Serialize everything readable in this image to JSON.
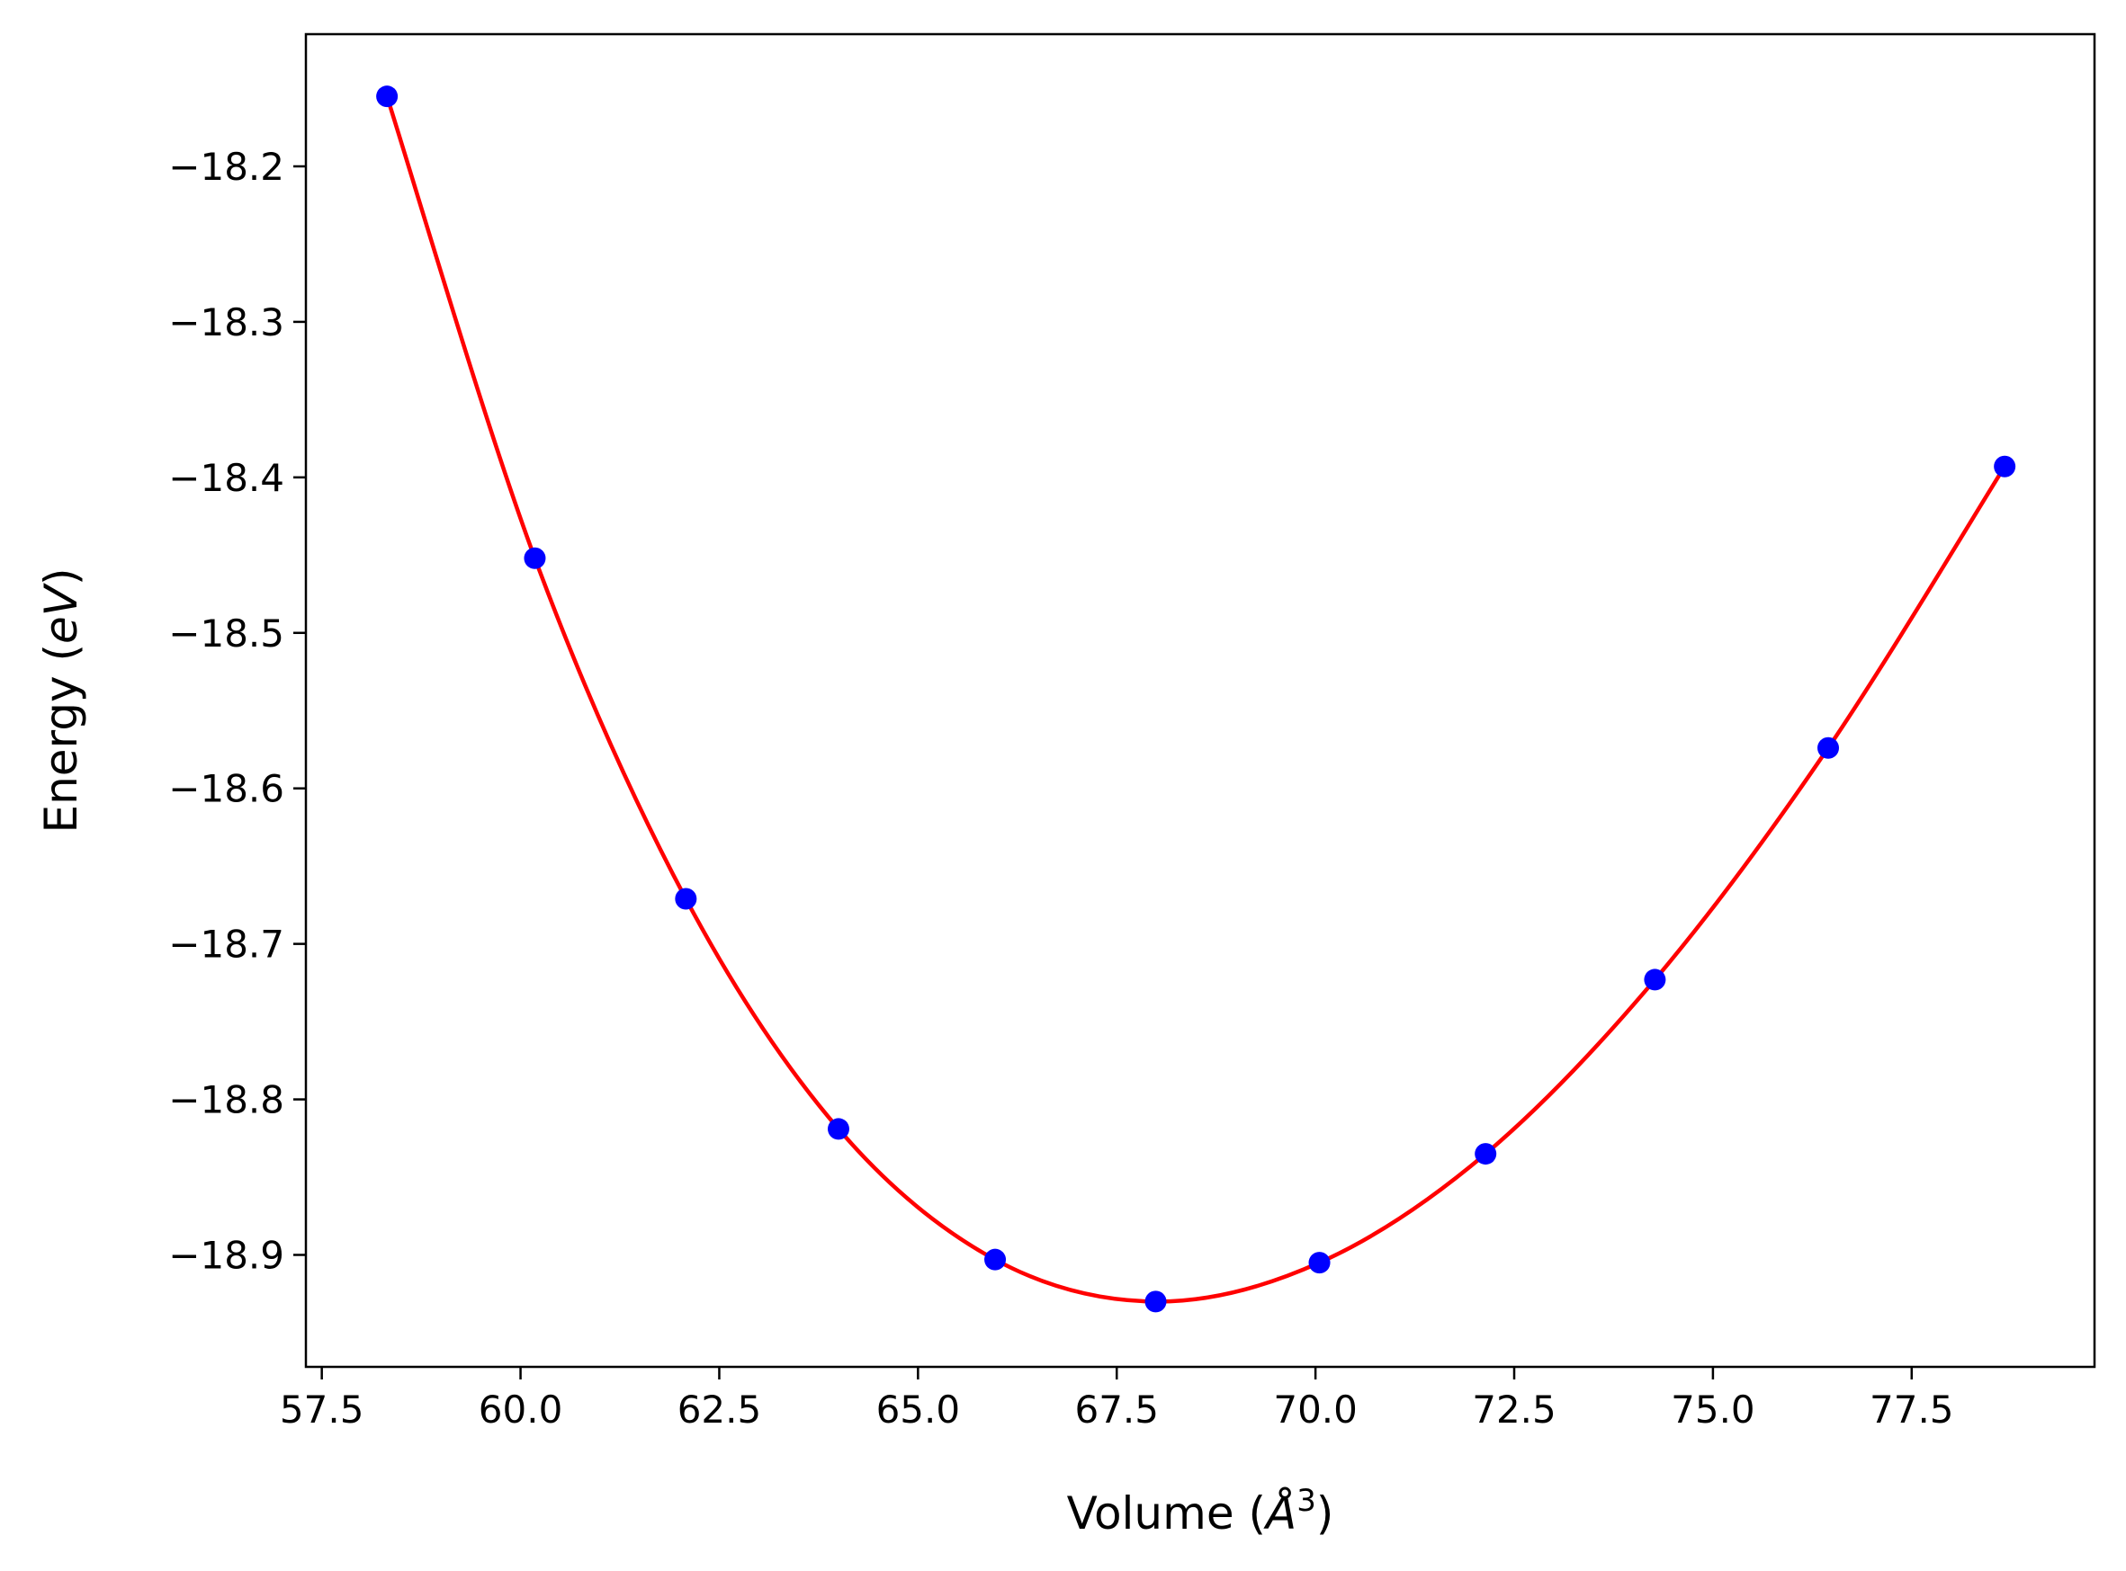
{
  "chart_data": {
    "type": "scatter",
    "xlabel": "Volume (Å³)",
    "xlabel_parts": {
      "prefix": "Volume (",
      "symbol": "Å",
      "sup": "3",
      "suffix": ")"
    },
    "ylabel": "Energy (eV)",
    "ylabel_parts": {
      "prefix": "Energy (",
      "unit": "eV",
      "suffix": ")"
    },
    "xlim": [
      57.3,
      79.8
    ],
    "ylim": [
      -18.972,
      -18.115
    ],
    "xticks": [
      57.5,
      60.0,
      62.5,
      65.0,
      67.5,
      70.0,
      72.5,
      75.0,
      77.5
    ],
    "xtick_labels": [
      "57.5",
      "60.0",
      "62.5",
      "65.0",
      "67.5",
      "70.0",
      "72.5",
      "75.0",
      "77.5"
    ],
    "yticks": [
      -18.2,
      -18.3,
      -18.4,
      -18.5,
      -18.6,
      -18.7,
      -18.8,
      -18.9
    ],
    "ytick_labels": [
      "−18.2",
      "−18.3",
      "−18.4",
      "−18.5",
      "−18.6",
      "−18.7",
      "−18.8",
      "−18.9"
    ],
    "grid": false,
    "series": [
      {
        "kind": "points",
        "color": "#0000ff",
        "x": [
          58.32,
          60.18,
          62.08,
          64.0,
          65.97,
          67.99,
          70.05,
          72.14,
          74.27,
          76.45,
          78.67
        ],
        "y": [
          -18.155,
          -18.452,
          -18.671,
          -18.819,
          -18.903,
          -18.93,
          -18.905,
          -18.835,
          -18.723,
          -18.574,
          -18.393
        ]
      },
      {
        "kind": "fit-curve",
        "color": "#ff0000"
      }
    ]
  }
}
